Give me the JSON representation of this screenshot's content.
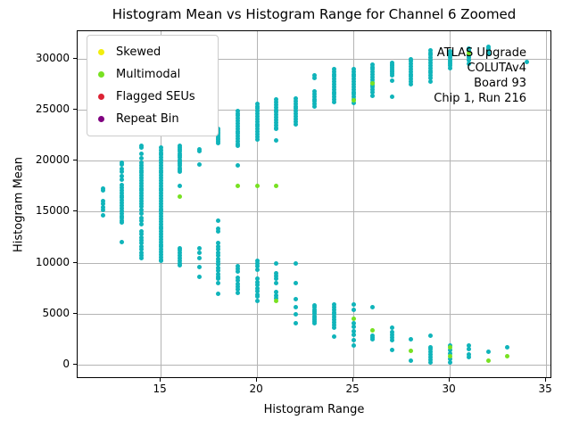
{
  "title": "Histogram Mean vs Histogram Range for Channel 6 Zoomed",
  "annotation": {
    "lines": [
      "ATLAS Upgrade",
      "COLUTAv4",
      "Board 93",
      "Chip 1, Run 216"
    ]
  },
  "legend": {
    "entries": [
      {
        "label": "Skewed",
        "color": "#f2ee0e"
      },
      {
        "label": "Multimodal",
        "color": "#78e122"
      },
      {
        "label": "Flagged SEUs",
        "color": "#dc2334"
      },
      {
        "label": "Repeat Bin",
        "color": "#800080"
      }
    ]
  },
  "colors": {
    "default_point": "#10b4ba",
    "gridline": "#b4b4b4",
    "spine": "#000000"
  },
  "chart_data": {
    "type": "scatter",
    "title": "Histogram Mean vs Histogram Range for Channel 6 Zoomed",
    "xlabel": "Histogram Range",
    "ylabel": "Histogram Mean",
    "xlim": [
      10.69,
      35.32
    ],
    "ylim": [
      -1400,
      32700
    ],
    "xticks": [
      15,
      20,
      25,
      30,
      35
    ],
    "yticks": [
      0,
      5000,
      10000,
      15000,
      20000,
      25000,
      30000
    ],
    "grid": true,
    "legend_position": "upper left",
    "series": [
      {
        "name": "default",
        "color": "#10b4ba",
        "clusters": [
          {
            "x": 12,
            "ys": [
              17250,
              17050,
              16050,
              15750,
              15450,
              15150,
              14650
            ]
          },
          {
            "x": 13,
            "ys": [
              19800,
              19650,
              19200,
              18900,
              18500,
              18100,
              17600,
              17350,
              17100,
              16850,
              16600,
              16350,
              16100,
              15850,
              15600,
              15350,
              15100,
              14850,
              14600,
              14350,
              14100,
              13950,
              12050
            ]
          },
          {
            "x": 14,
            "ys": [
              21500,
              21250,
              20650,
              20250,
              19800,
              19550,
              19300,
              19050,
              18800,
              18550,
              18300,
              18050,
              17800,
              17550,
              17300,
              17050,
              16800,
              16550,
              16300,
              16050,
              15800,
              15500,
              15200,
              14850,
              14400,
              14100,
              13800,
              13100,
              12800,
              12500,
              12200,
              11900,
              11600,
              11300,
              11000,
              10750,
              10450
            ]
          },
          {
            "x": 15,
            "ys": [
              21300,
              21050,
              20800,
              20550,
              20300,
              20050,
              19800,
              19550,
              19300,
              19050,
              18800,
              18550,
              18300,
              18050,
              17800,
              17550,
              17300,
              17050,
              16800,
              16550,
              16300,
              16050,
              15800,
              15550,
              15300,
              15050,
              14800,
              14550,
              14300,
              14050,
              13800,
              13550,
              13300,
              13050,
              12800,
              12550,
              12300,
              12050,
              11800,
              11550,
              11300,
              11050,
              10800,
              10550,
              10300,
              10150
            ]
          },
          {
            "x": 16,
            "ys": [
              21500,
              21300,
              21100,
              20900,
              20700,
              20500,
              20300,
              20100,
              19900,
              19700,
              19500,
              19300,
              19100,
              18900,
              17500,
              11450,
              11200,
              10950,
              10700,
              10450,
              10200,
              9950,
              9750
            ]
          },
          {
            "x": 17,
            "ys": [
              23000,
              21100,
              20950,
              19600,
              11450,
              11000,
              10450,
              9600,
              8600
            ]
          },
          {
            "x": 18,
            "ys": [
              23100,
              22950,
              22800,
              22650,
              22500,
              22350,
              22200,
              22050,
              21900,
              21750,
              14100,
              13300,
              13100,
              11900,
              11600,
              11300,
              11000,
              10700,
              10400,
              10100,
              9800,
              9500,
              9200,
              8900,
              8600,
              8400,
              7980,
              6960
            ]
          },
          {
            "x": 19,
            "ys": [
              24900,
              24650,
              24400,
              24150,
              23900,
              23650,
              23400,
              23150,
              22900,
              22650,
              22400,
              22150,
              21900,
              21650,
              21500,
              19500,
              9700,
              9400,
              9100,
              8550,
              8250,
              7950,
              7650,
              7350,
              7000
            ]
          },
          {
            "x": 20,
            "ys": [
              25600,
              25350,
              25100,
              24850,
              24600,
              24350,
              24100,
              23850,
              23600,
              23350,
              23100,
              22850,
              22600,
              22350,
              22100,
              10150,
              9900,
              9650,
              9300,
              8400,
              8100,
              7800,
              7500,
              7200,
              6900,
              6650,
              6250
            ]
          },
          {
            "x": 21,
            "ys": [
              26000,
              25750,
              25500,
              25250,
              25000,
              24750,
              24500,
              24250,
              24000,
              23750,
              23500,
              23250,
              23100,
              21950,
              9900,
              9000,
              8700,
              8400,
              8000,
              7100,
              6800,
              6500
            ]
          },
          {
            "x": 22,
            "ys": [
              26100,
              25850,
              25600,
              25350,
              25100,
              24850,
              24600,
              24350,
              24100,
              23850,
              23600,
              9900,
              8000,
              6400,
              5650,
              4900,
              4050
            ]
          },
          {
            "x": 23,
            "ys": [
              28400,
              28100,
              26800,
              26550,
              26300,
              26050,
              25800,
              25550,
              25300,
              5800,
              5600,
              5400,
              5200,
              5000,
              4800,
              4600,
              4400,
              4200,
              4050
            ]
          },
          {
            "x": 24,
            "ys": [
              29000,
              28750,
              28500,
              28250,
              28000,
              27750,
              27500,
              27250,
              27000,
              26750,
              26500,
              26250,
              26000,
              25750,
              5900,
              5650,
              5400,
              5150,
              4900,
              4650,
              4400,
              4150,
              3900,
              3650,
              2740
            ]
          },
          {
            "x": 25,
            "ys": [
              29000,
              28750,
              28500,
              28250,
              28000,
              27750,
              27500,
              27250,
              27000,
              26750,
              26500,
              26250,
              26000,
              25700,
              5940,
              5400,
              4050,
              3700,
              3300,
              2900,
              2400,
              1900
            ]
          },
          {
            "x": 26,
            "ys": [
              29450,
              29200,
              28950,
              28700,
              28450,
              28200,
              27950,
              27700,
              27450,
              27200,
              26950,
              26700,
              26400,
              5650,
              2880,
              2700,
              2450
            ]
          },
          {
            "x": 27,
            "ys": [
              29600,
              29450,
              29300,
              29150,
              29000,
              28850,
              28700,
              28550,
              28400,
              27850,
              26240,
              3610,
              3200,
              2950,
              2700,
              2400,
              1420
            ]
          },
          {
            "x": 28,
            "ys": [
              29970,
              29750,
              29500,
              29250,
              29000,
              28750,
              28500,
              28250,
              28000,
              27750,
              27500,
              2450,
              410
            ]
          },
          {
            "x": 29,
            "ys": [
              30850,
              30600,
              30350,
              30100,
              29850,
              29600,
              29350,
              29100,
              28850,
              28600,
              28350,
              28100,
              27800,
              2880,
              1720,
              1500,
              1250,
              1000,
              750,
              500,
              260
            ]
          },
          {
            "x": 30,
            "ys": [
              30700,
              30500,
              30300,
              30100,
              29900,
              29700,
              29500,
              29300,
              29100,
              1860,
              1450,
              1100,
              550,
              260
            ]
          },
          {
            "x": 31,
            "ys": [
              31000,
              30800,
              30300,
              30100,
              29850,
              29550,
              1860,
              1570,
              990,
              700
            ]
          },
          {
            "x": 32,
            "ys": [
              31200,
              31000,
              30800,
              30600,
              30440,
              1280
            ]
          },
          {
            "x": 33,
            "ys": [
              1720
            ]
          },
          {
            "x": 34,
            "ys": [
              29650
            ]
          }
        ]
      },
      {
        "name": "Multimodal",
        "color": "#78e122",
        "clusters": [
          {
            "x": 16,
            "ys": [
              16500
            ]
          },
          {
            "x": 19,
            "ys": [
              17570
            ]
          },
          {
            "x": 20,
            "ys": [
              17570
            ]
          },
          {
            "x": 21,
            "ys": [
              17570,
              6290
            ]
          },
          {
            "x": 25,
            "ys": [
              25950,
              4480
            ]
          },
          {
            "x": 26,
            "ys": [
              27550,
              3380
            ]
          },
          {
            "x": 28,
            "ys": [
              1340
            ]
          },
          {
            "x": 30,
            "ys": [
              1690,
              850
            ]
          },
          {
            "x": 31,
            "ys": [
              30600
            ]
          },
          {
            "x": 32,
            "ys": [
              410
            ]
          },
          {
            "x": 33,
            "ys": [
              850
            ]
          }
        ]
      },
      {
        "name": "Skewed",
        "color": "#f2ee0e",
        "clusters": []
      },
      {
        "name": "Flagged SEUs",
        "color": "#dc2334",
        "clusters": []
      },
      {
        "name": "Repeat Bin",
        "color": "#800080",
        "clusters": []
      }
    ]
  }
}
